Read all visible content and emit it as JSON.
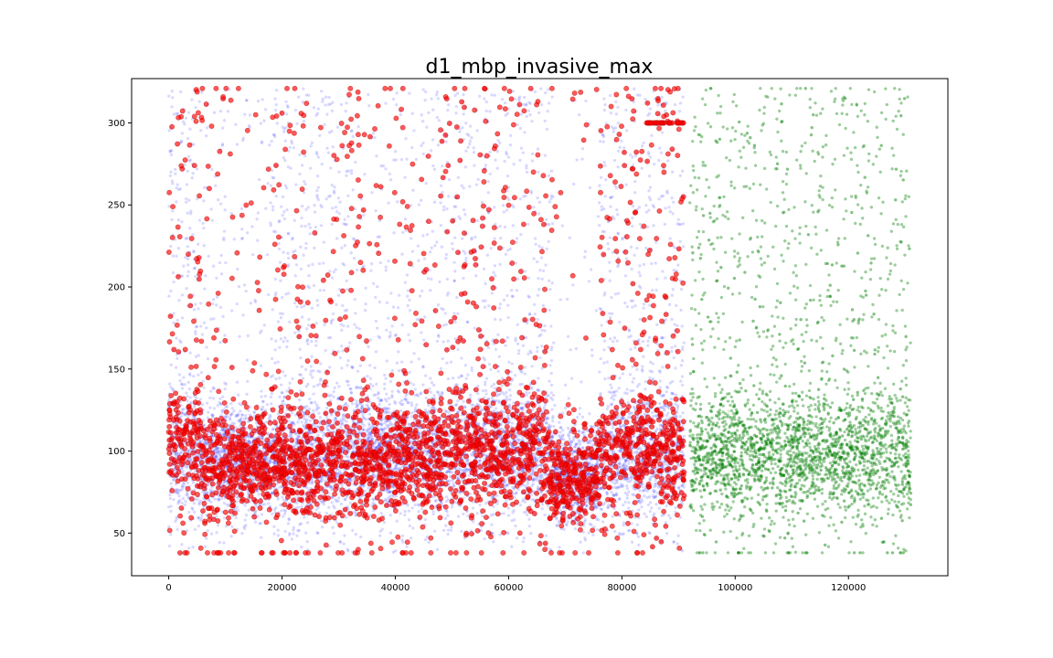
{
  "chart_data": {
    "type": "scatter",
    "title": "d1_mbp_invasive_max",
    "xlabel": "",
    "ylabel": "",
    "xlim": [
      -6550,
      137550
    ],
    "ylim": [
      24,
      327
    ],
    "x_ticks": [
      0,
      20000,
      40000,
      60000,
      80000,
      100000,
      120000
    ],
    "x_tick_labels": [
      "0",
      "20000",
      "40000",
      "60000",
      "80000",
      "100000",
      "120000"
    ],
    "y_ticks": [
      50,
      100,
      150,
      200,
      250,
      300
    ],
    "y_tick_labels": [
      "50",
      "100",
      "150",
      "200",
      "250",
      "300"
    ],
    "grid": false,
    "legend": "none",
    "series_style": [
      {
        "color": "#0000ff",
        "alpha": 0.15,
        "marker_size": 2.5
      },
      {
        "color": "#ff0000",
        "alpha": 0.65,
        "marker_size": 4.5
      },
      {
        "color": "#008000",
        "alpha": 0.15,
        "marker_size": 2.5
      }
    ],
    "series": [
      {
        "x_range": [
          0,
          91000
        ],
        "y_range": [
          38,
          321
        ],
        "estimated_points": 9000,
        "color": "#0000ff",
        "density_profile": [
          {
            "x": [
              0,
              5000
            ],
            "center": 100,
            "spread": 20,
            "tail_fraction": 0.35
          },
          {
            "x": [
              5000,
              10000
            ],
            "center": 95,
            "spread": 18,
            "tail_fraction": 0.2
          },
          {
            "x": [
              10000,
              18000
            ],
            "center": 95,
            "spread": 16,
            "tail_fraction": 0.1
          },
          {
            "x": [
              18000,
              32000
            ],
            "center": 95,
            "spread": 18,
            "tail_fraction": 0.3
          },
          {
            "x": [
              32000,
              48000
            ],
            "center": 100,
            "spread": 18,
            "tail_fraction": 0.15
          },
          {
            "x": [
              48000,
              68000
            ],
            "center": 100,
            "spread": 18,
            "tail_fraction": 0.3
          },
          {
            "x": [
              68000,
              76000
            ],
            "center": 85,
            "spread": 15,
            "tail_fraction": 0.05
          },
          {
            "x": [
              76000,
              91000
            ],
            "center": 98,
            "spread": 18,
            "tail_fraction": 0.3
          }
        ]
      },
      {
        "x_range": [
          0,
          91000
        ],
        "y_range": [
          38,
          321
        ],
        "estimated_points": 3200,
        "color": "#ff0000",
        "density_profile": [
          {
            "x": [
              0,
              6000
            ],
            "center": 105,
            "spread": 18,
            "tail_fraction": 0.25
          },
          {
            "x": [
              6000,
              12000
            ],
            "center": 90,
            "spread": 15,
            "tail_fraction": 0.15
          },
          {
            "x": [
              12000,
              18000
            ],
            "center": 95,
            "spread": 14,
            "tail_fraction": 0.1
          },
          {
            "x": [
              18000,
              34000
            ],
            "center": 92,
            "spread": 16,
            "tail_fraction": 0.2
          },
          {
            "x": [
              34000,
              48000
            ],
            "center": 95,
            "spread": 17,
            "tail_fraction": 0.15
          },
          {
            "x": [
              48000,
              67000
            ],
            "center": 100,
            "spread": 17,
            "tail_fraction": 0.25
          },
          {
            "x": [
              67000,
              76000
            ],
            "center": 85,
            "spread": 14,
            "tail_fraction": 0.05
          },
          {
            "x": [
              76000,
              91000
            ],
            "center": 98,
            "spread": 17,
            "tail_fraction": 0.3
          }
        ],
        "floor_value": 38,
        "ceiling_value": 321,
        "cluster": {
          "x": [
            84000,
            91000
          ],
          "y": 300
        }
      },
      {
        "x_range": [
          92000,
          131000
        ],
        "y_range": [
          38,
          321
        ],
        "estimated_points": 9000,
        "color": "#008000",
        "density_profile": [
          {
            "x": [
              92000,
              131000
            ],
            "center": 97,
            "spread": 18,
            "tail_fraction": 0.3
          }
        ],
        "floor_value": 38,
        "ceiling_value": 321
      }
    ]
  }
}
